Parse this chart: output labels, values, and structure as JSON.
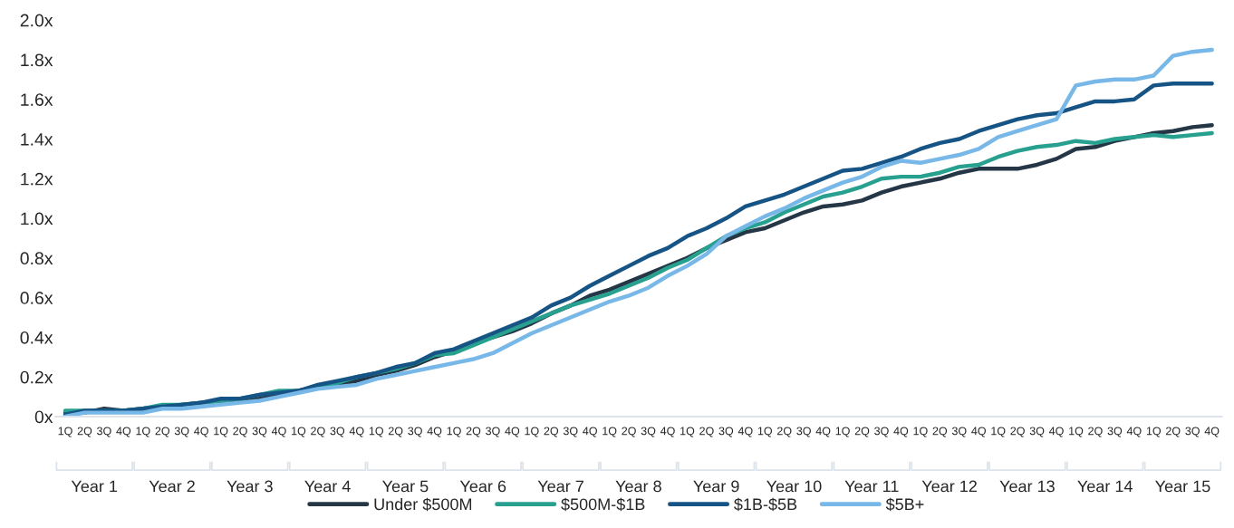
{
  "chart_data": {
    "type": "line",
    "categories": [
      "1Q",
      "2Q",
      "3Q",
      "4Q",
      "1Q",
      "2Q",
      "3Q",
      "4Q",
      "1Q",
      "2Q",
      "3Q",
      "4Q",
      "1Q",
      "2Q",
      "3Q",
      "4Q",
      "1Q",
      "2Q",
      "3Q",
      "4Q",
      "1Q",
      "2Q",
      "3Q",
      "4Q",
      "1Q",
      "2Q",
      "3Q",
      "4Q",
      "1Q",
      "2Q",
      "3Q",
      "4Q",
      "1Q",
      "2Q",
      "3Q",
      "4Q",
      "1Q",
      "2Q",
      "3Q",
      "4Q",
      "1Q",
      "2Q",
      "3Q",
      "4Q",
      "1Q",
      "2Q",
      "3Q",
      "4Q",
      "1Q",
      "2Q",
      "3Q",
      "4Q",
      "1Q",
      "2Q",
      "3Q",
      "4Q",
      "1Q",
      "2Q",
      "3Q",
      "4Q"
    ],
    "series": [
      {
        "name": "Under $500M",
        "color": "#253746",
        "values": [
          0.02,
          0.02,
          0.04,
          0.03,
          0.04,
          0.05,
          0.06,
          0.07,
          0.08,
          0.08,
          0.09,
          0.11,
          0.13,
          0.15,
          0.16,
          0.18,
          0.21,
          0.23,
          0.26,
          0.3,
          0.33,
          0.37,
          0.4,
          0.43,
          0.47,
          0.52,
          0.56,
          0.61,
          0.64,
          0.68,
          0.72,
          0.76,
          0.8,
          0.85,
          0.89,
          0.93,
          0.95,
          0.99,
          1.03,
          1.06,
          1.07,
          1.09,
          1.13,
          1.16,
          1.18,
          1.2,
          1.23,
          1.25,
          1.25,
          1.25,
          1.27,
          1.3,
          1.35,
          1.36,
          1.39,
          1.41,
          1.43,
          1.44,
          1.46,
          1.47
        ]
      },
      {
        "name": "$500M-$1B",
        "color": "#28a08f",
        "values": [
          0.03,
          0.03,
          0.03,
          0.03,
          0.04,
          0.06,
          0.06,
          0.07,
          0.08,
          0.09,
          0.11,
          0.13,
          0.13,
          0.15,
          0.17,
          0.2,
          0.22,
          0.24,
          0.27,
          0.31,
          0.32,
          0.36,
          0.4,
          0.44,
          0.48,
          0.52,
          0.56,
          0.59,
          0.62,
          0.66,
          0.7,
          0.75,
          0.79,
          0.85,
          0.91,
          0.95,
          0.98,
          1.03,
          1.07,
          1.11,
          1.13,
          1.16,
          1.2,
          1.21,
          1.21,
          1.23,
          1.26,
          1.27,
          1.31,
          1.34,
          1.36,
          1.37,
          1.39,
          1.38,
          1.4,
          1.41,
          1.42,
          1.41,
          1.42,
          1.43
        ]
      },
      {
        "name": "$1B-$5B",
        "color": "#175486",
        "values": [
          0.01,
          0.03,
          0.03,
          0.03,
          0.04,
          0.05,
          0.06,
          0.07,
          0.09,
          0.09,
          0.11,
          0.12,
          0.13,
          0.16,
          0.18,
          0.2,
          0.22,
          0.25,
          0.27,
          0.32,
          0.34,
          0.38,
          0.42,
          0.46,
          0.5,
          0.56,
          0.6,
          0.66,
          0.71,
          0.76,
          0.81,
          0.85,
          0.91,
          0.95,
          1.0,
          1.06,
          1.09,
          1.12,
          1.16,
          1.2,
          1.24,
          1.25,
          1.28,
          1.31,
          1.35,
          1.38,
          1.4,
          1.44,
          1.47,
          1.5,
          1.52,
          1.53,
          1.56,
          1.59,
          1.59,
          1.6,
          1.67,
          1.68,
          1.68,
          1.68
        ]
      },
      {
        "name": "$5B+",
        "color": "#78b8e8",
        "values": [
          0.0,
          0.02,
          0.02,
          0.02,
          0.02,
          0.04,
          0.04,
          0.05,
          0.06,
          0.07,
          0.08,
          0.1,
          0.12,
          0.14,
          0.15,
          0.16,
          0.19,
          0.21,
          0.23,
          0.25,
          0.27,
          0.29,
          0.32,
          0.37,
          0.42,
          0.46,
          0.5,
          0.54,
          0.58,
          0.61,
          0.65,
          0.71,
          0.76,
          0.82,
          0.91,
          0.96,
          1.01,
          1.05,
          1.1,
          1.14,
          1.18,
          1.21,
          1.26,
          1.29,
          1.28,
          1.3,
          1.32,
          1.35,
          1.41,
          1.44,
          1.47,
          1.5,
          1.67,
          1.69,
          1.7,
          1.7,
          1.72,
          1.82,
          1.84,
          1.85
        ]
      }
    ],
    "ylim": [
      0,
      2.0
    ],
    "yticks": [
      {
        "value": 0,
        "label": "0x"
      },
      {
        "value": 0.2,
        "label": "0.2x"
      },
      {
        "value": 0.4,
        "label": "0.4x"
      },
      {
        "value": 0.6,
        "label": "0.6x"
      },
      {
        "value": 0.8,
        "label": "0.8x"
      },
      {
        "value": 1.0,
        "label": "1.0x"
      },
      {
        "value": 1.2,
        "label": "1.2x"
      },
      {
        "value": 1.4,
        "label": "1.4x"
      },
      {
        "value": 1.6,
        "label": "1.6x"
      },
      {
        "value": 1.8,
        "label": "1.8x"
      },
      {
        "value": 2.0,
        "label": "2.0x"
      }
    ],
    "annotations": [
      "Year 1",
      "Year 2",
      "Year 3",
      "Year 4",
      "Year 5",
      "Year 6",
      "Year 7",
      "Year 8",
      "Year 9",
      "Year 10",
      "Year 11",
      "Year 12",
      "Year 13",
      "Year 14",
      "Year 15"
    ],
    "legend": "bottom",
    "grid": false,
    "marker": "none",
    "line_style": "solid"
  }
}
